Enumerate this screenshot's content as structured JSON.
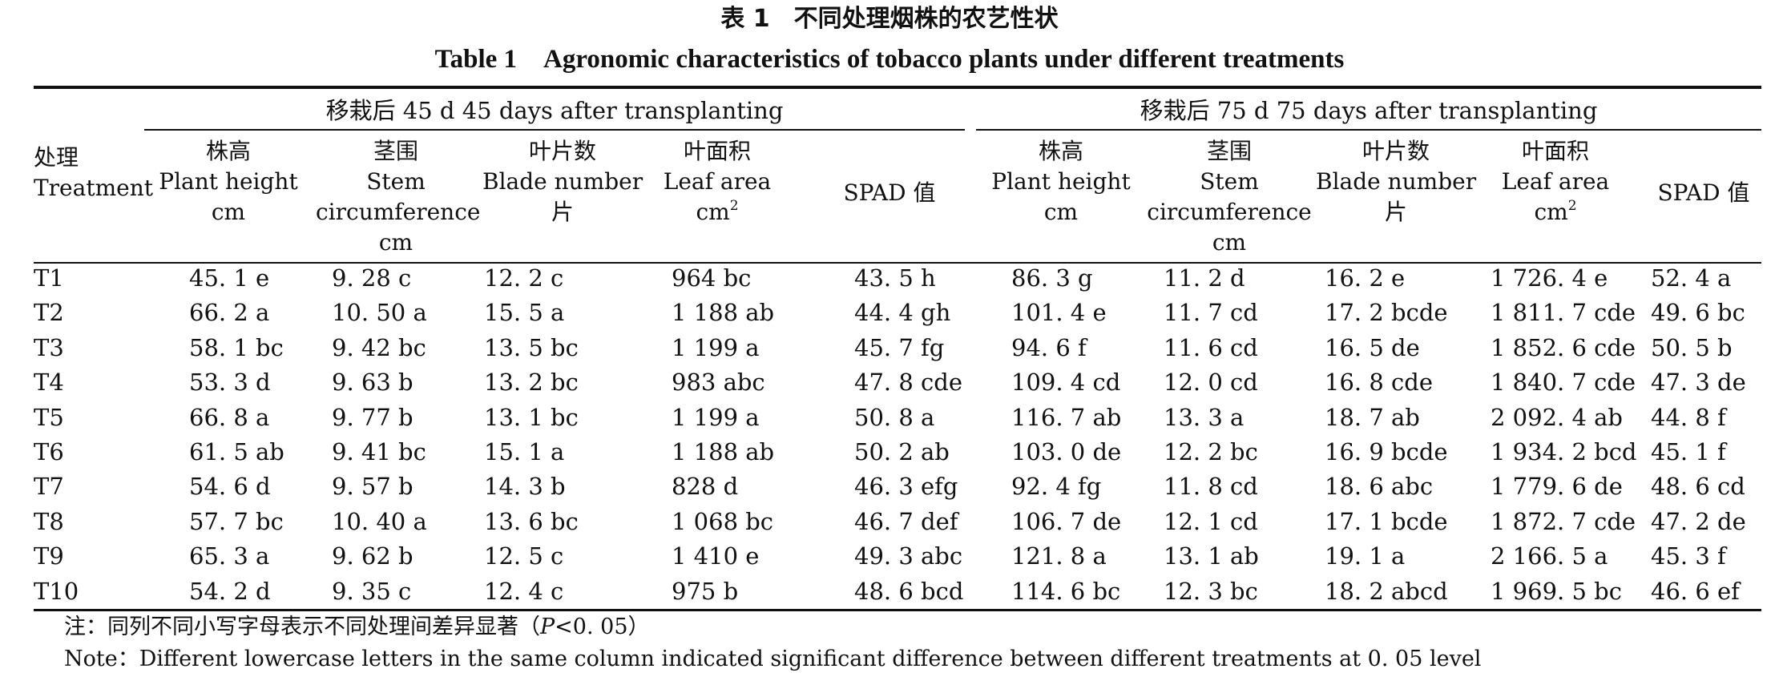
{
  "table": {
    "title_cn": "表 1　不同处理烟株的农艺性状",
    "title_en": "Table 1　Agronomic characteristics of tobacco plants under different treatments",
    "group_headers": [
      "移栽后 45 d 45 days after transplanting",
      "移栽后 75 d 75 days after transplanting"
    ],
    "treatment_header": [
      "处理",
      "Treatment"
    ],
    "column_headers": [
      [
        "株高",
        "Plant height",
        "cm"
      ],
      [
        "茎围",
        "Stem",
        "circumference",
        "cm"
      ],
      [
        "叶片数",
        "Blade number",
        "片"
      ],
      [
        "叶面积",
        "Leaf area",
        "cm²"
      ],
      [
        "SPAD 值"
      ],
      [
        "株高",
        "Plant height",
        "cm"
      ],
      [
        "茎围",
        "Stem",
        "circumference",
        "cm"
      ],
      [
        "叶片数",
        "Blade number",
        "片"
      ],
      [
        "叶面积",
        "Leaf area",
        "cm²"
      ],
      [
        "SPAD 值"
      ]
    ],
    "rows": [
      [
        "T1",
        "45. 1 e",
        "9. 28 c",
        "12. 2 c",
        "964 bc",
        "43. 5 h",
        "86. 3 g",
        "11. 2 d",
        "16. 2 e",
        "1 726. 4 e",
        "52. 4 a"
      ],
      [
        "T2",
        "66. 2 a",
        "10. 50 a",
        "15. 5 a",
        "1 188 ab",
        "44. 4 gh",
        "101. 4 e",
        "11. 7 cd",
        "17. 2 bcde",
        "1 811. 7 cde",
        "49. 6 bc"
      ],
      [
        "T3",
        "58. 1 bc",
        "9. 42 bc",
        "13. 5 bc",
        "1 199 a",
        "45. 7 fg",
        "94. 6 f",
        "11. 6 cd",
        "16. 5 de",
        "1 852. 6 cde",
        "50. 5 b"
      ],
      [
        "T4",
        "53. 3 d",
        "9. 63 b",
        "13. 2 bc",
        "983 abc",
        "47. 8 cde",
        "109. 4 cd",
        "12. 0 cd",
        "16. 8 cde",
        "1 840. 7 cde",
        "47. 3 de"
      ],
      [
        "T5",
        "66. 8 a",
        "9. 77 b",
        "13. 1 bc",
        "1 199 a",
        "50. 8 a",
        "116. 7 ab",
        "13. 3 a",
        "18. 7 ab",
        "2 092. 4 ab",
        "44. 8 f"
      ],
      [
        "T6",
        "61. 5 ab",
        "9. 41 bc",
        "15. 1 a",
        "1 188 ab",
        "50. 2 ab",
        "103. 0 de",
        "12. 2 bc",
        "16. 9 bcde",
        "1 934. 2 bcd",
        "45. 1 f"
      ],
      [
        "T7",
        "54. 6 d",
        "9. 57 b",
        "14. 3 b",
        "828 d",
        "46. 3 efg",
        "92. 4 fg",
        "11. 8 cd",
        "18. 6 abc",
        "1 779. 6 de",
        "48. 6 cd"
      ],
      [
        "T8",
        "57. 7 bc",
        "10. 40 a",
        "13. 6 bc",
        "1 068 bc",
        "46. 7 def",
        "106. 7 de",
        "12. 1 cd",
        "17. 1 bcde",
        "1 872. 7 cde",
        "47. 2 de"
      ],
      [
        "T9",
        "65. 3 a",
        "9. 62 b",
        "12. 5 c",
        "1 410 e",
        "49. 3 abc",
        "121. 8 a",
        "13. 1 ab",
        "19. 1 a",
        "2 166. 5 a",
        "45. 3 f"
      ],
      [
        "T10",
        "54. 2 d",
        "9. 35 c",
        "12. 4 c",
        "975 b",
        "48. 6 bcd",
        "114. 6 bc",
        "12. 3 bc",
        "18. 2 abcd",
        "1 969. 5 bc",
        "46. 6 ef"
      ]
    ],
    "note_cn_before": "注：同列不同小写字母表示不同处理间差异显著（",
    "note_cn_p": "P",
    "note_cn_after": "<0. 05）",
    "note_en": "Note：Different lowercase letters in the same column indicated significant difference between different treatments at 0. 05 level"
  }
}
